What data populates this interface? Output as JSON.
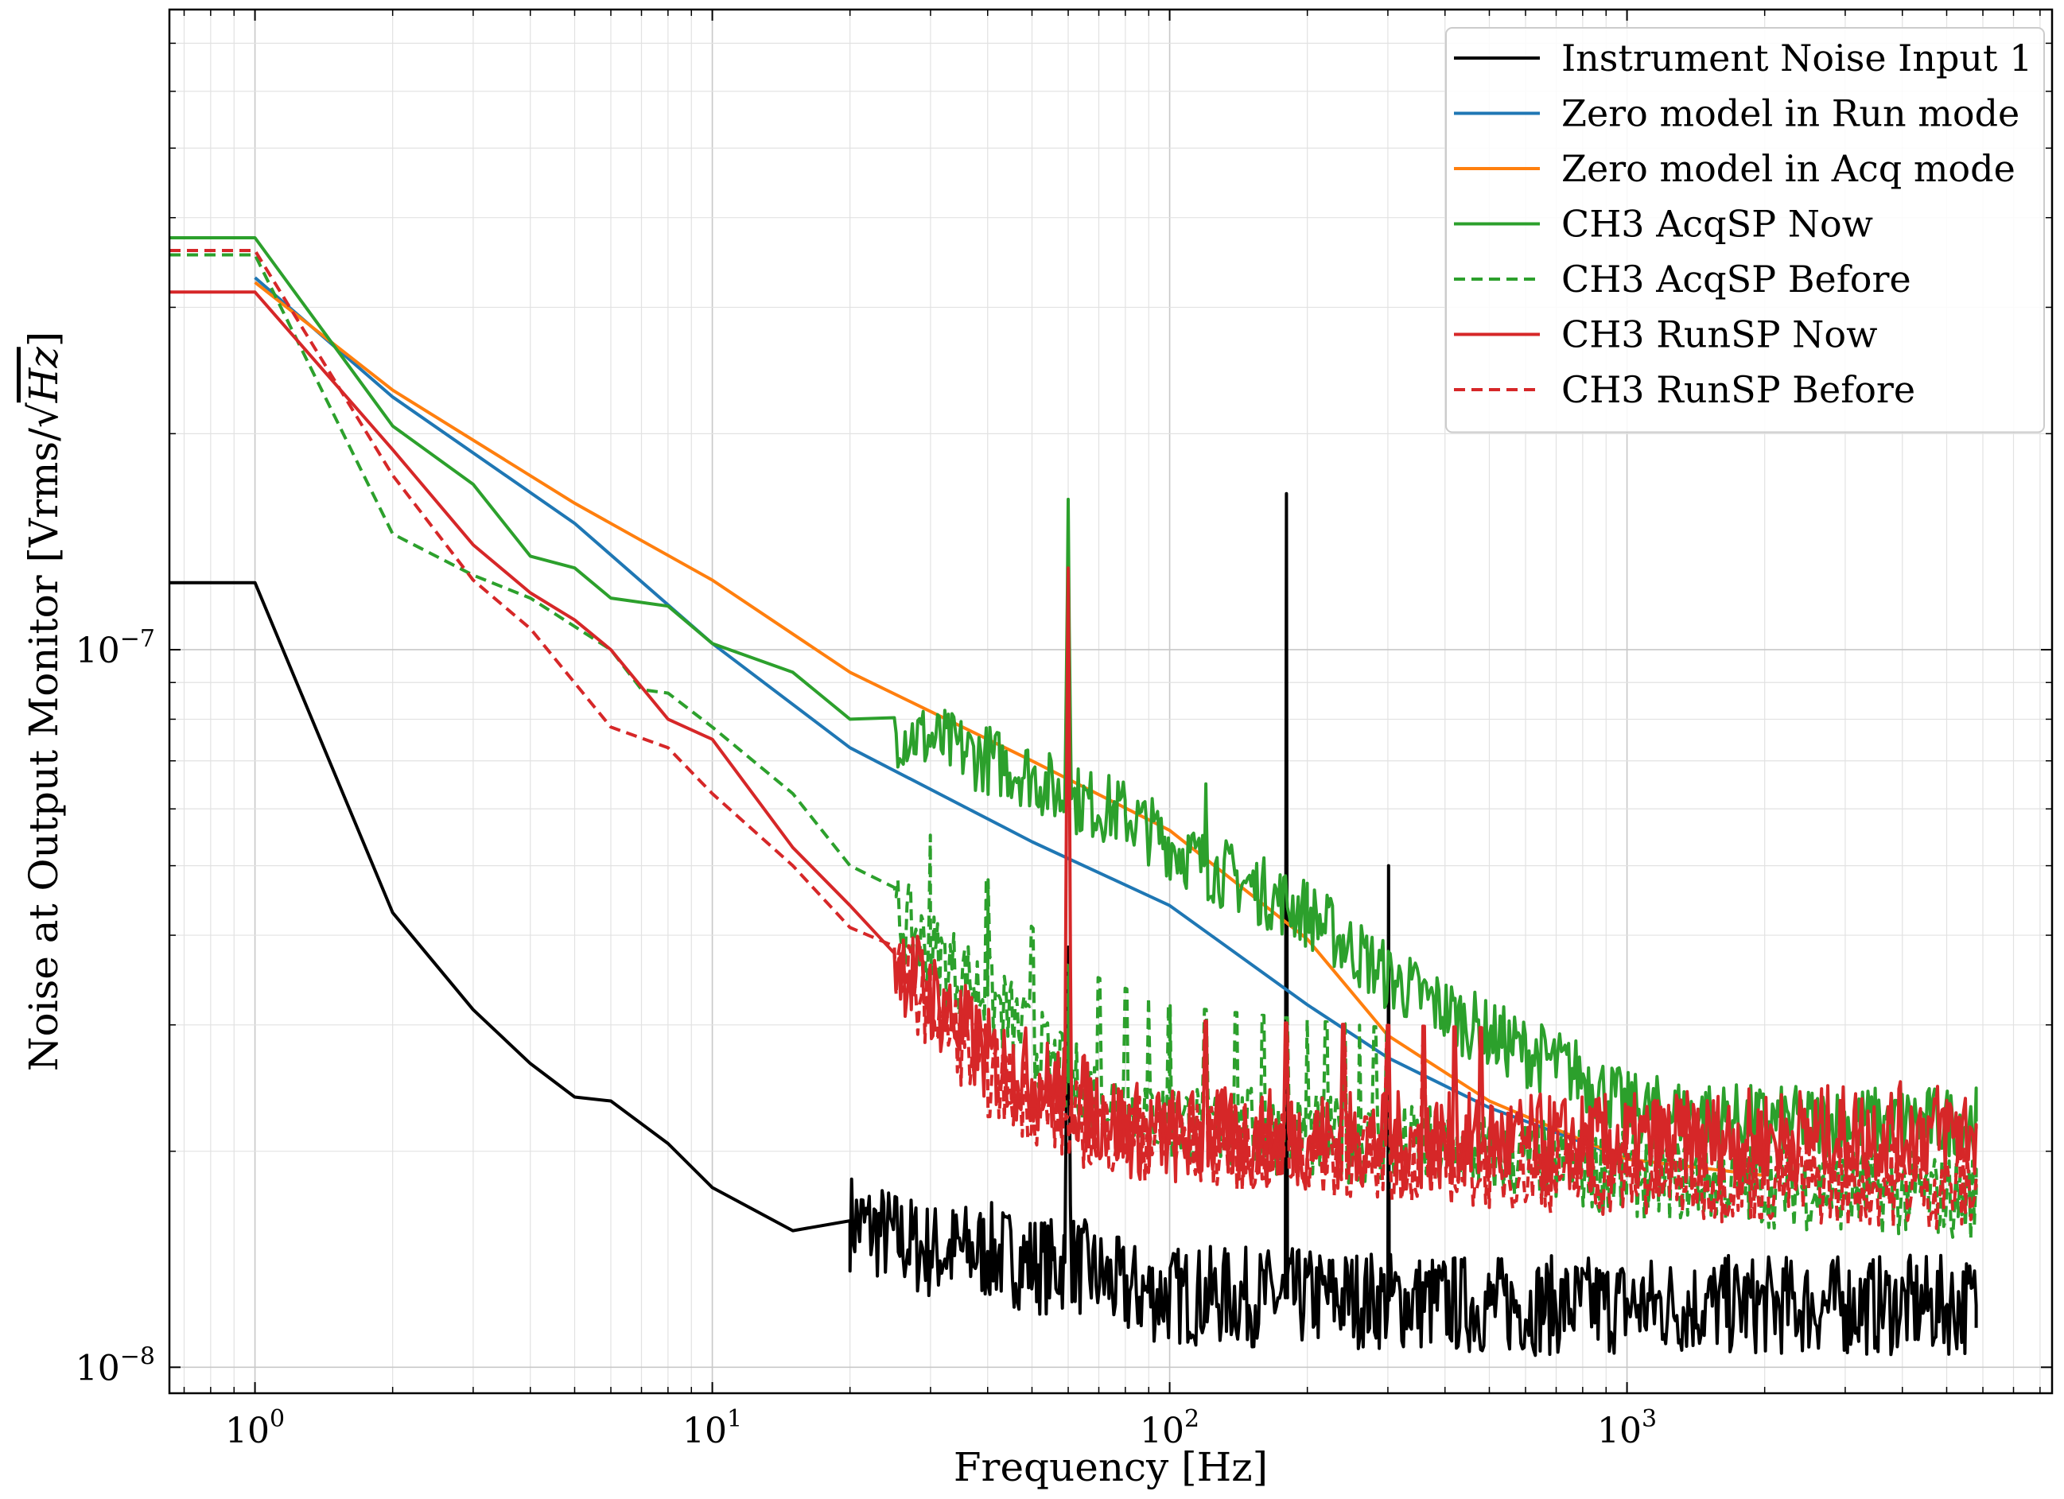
{
  "chart_data": {
    "type": "line",
    "title": "",
    "xlabel": "Frequency [Hz]",
    "ylabel": "Noise at Output Monitor [Vrms/√Hz]",
    "ylabel_radicand": "Hz",
    "x_scale": "log",
    "y_scale": "log",
    "xlim": [
      0.65,
      8500
    ],
    "ylim": [
      9.2e-09,
      7.8e-07
    ],
    "x_ticks": [
      {
        "value": 1,
        "base": "10",
        "exp": "0"
      },
      {
        "value": 10,
        "base": "10",
        "exp": "1"
      },
      {
        "value": 100,
        "base": "10",
        "exp": "2"
      },
      {
        "value": 1000,
        "base": "10",
        "exp": "3"
      }
    ],
    "y_ticks": [
      {
        "value": 1e-08,
        "base": "10",
        "exp": "−8"
      },
      {
        "value": 1e-07,
        "base": "10",
        "exp": "−7"
      }
    ],
    "grid": true,
    "legend_position": "top-right",
    "series": [
      {
        "name": "Instrument Noise Input 1",
        "color": "#000000",
        "style": "solid",
        "points": [
          [
            0.65,
            1.24e-07
          ],
          [
            1,
            1.24e-07
          ],
          [
            2,
            4.3e-08
          ],
          [
            3,
            3.15e-08
          ],
          [
            4,
            2.65e-08
          ],
          [
            5,
            2.38e-08
          ],
          [
            6,
            2.35e-08
          ],
          [
            8,
            2.05e-08
          ],
          [
            10,
            1.78e-08
          ],
          [
            15,
            1.55e-08
          ],
          [
            20,
            1.6e-08
          ],
          [
            30,
            1.45e-08
          ],
          [
            40,
            1.45e-08
          ],
          [
            55,
            1.38e-08
          ],
          [
            59,
            1.4e-08
          ],
          [
            60,
            3.85e-08
          ],
          [
            61,
            1.4e-08
          ],
          [
            80,
            1.28e-08
          ],
          [
            100,
            1.26e-08
          ],
          [
            179,
            1.25e-08
          ],
          [
            180,
            1.65e-07
          ],
          [
            181,
            1.25e-08
          ],
          [
            240,
            1.25e-08
          ],
          [
            300,
            1.24e-08
          ],
          [
            301,
            5e-08
          ],
          [
            302,
            1.24e-08
          ],
          [
            500,
            1.22e-08
          ],
          [
            1000,
            1.22e-08
          ],
          [
            3000,
            1.22e-08
          ],
          [
            5800,
            1.22e-08
          ]
        ],
        "noise": 0.07,
        "noise_start": 20,
        "noise_n": 700
      },
      {
        "name": "Zero model in Run mode",
        "color": "#1f77b4",
        "style": "solid",
        "points": [
          [
            1,
            3.3e-07
          ],
          [
            2,
            2.25e-07
          ],
          [
            5,
            1.5e-07
          ],
          [
            10,
            1.02e-07
          ],
          [
            20,
            7.3e-08
          ],
          [
            50,
            5.4e-08
          ],
          [
            100,
            4.4e-08
          ],
          [
            200,
            3.2e-08
          ],
          [
            300,
            2.7e-08
          ],
          [
            500,
            2.3e-08
          ],
          [
            1000,
            1.95e-08
          ],
          [
            2000,
            1.85e-08
          ]
        ]
      },
      {
        "name": "Zero model in Acq mode",
        "color": "#ff7f0e",
        "style": "solid",
        "points": [
          [
            1,
            3.25e-07
          ],
          [
            2,
            2.3e-07
          ],
          [
            5,
            1.6e-07
          ],
          [
            10,
            1.25e-07
          ],
          [
            20,
            9.3e-08
          ],
          [
            50,
            7e-08
          ],
          [
            100,
            5.6e-08
          ],
          [
            200,
            3.95e-08
          ],
          [
            300,
            2.9e-08
          ],
          [
            500,
            2.35e-08
          ],
          [
            1000,
            1.95e-08
          ],
          [
            2000,
            1.85e-08
          ]
        ]
      },
      {
        "name": "CH3 AcqSP Now",
        "color": "#2ca02c",
        "style": "solid",
        "points": [
          [
            0.65,
            3.75e-07
          ],
          [
            1,
            3.75e-07
          ],
          [
            2,
            2.05e-07
          ],
          [
            3,
            1.7e-07
          ],
          [
            4,
            1.35e-07
          ],
          [
            5,
            1.3e-07
          ],
          [
            6,
            1.18e-07
          ],
          [
            8,
            1.15e-07
          ],
          [
            10,
            1.02e-07
          ],
          [
            15,
            9.3e-08
          ],
          [
            20,
            8e-08
          ],
          [
            30,
            7.5e-08
          ],
          [
            50,
            6.7e-08
          ],
          [
            59,
            6.2e-08
          ],
          [
            60,
            1.62e-07
          ],
          [
            61,
            6.2e-08
          ],
          [
            80,
            5.9e-08
          ],
          [
            119,
            5e-08
          ],
          [
            120,
            6.5e-08
          ],
          [
            121,
            5e-08
          ],
          [
            200,
            4.3e-08
          ],
          [
            300,
            3.5e-08
          ],
          [
            500,
            2.9e-08
          ],
          [
            800,
            2.55e-08
          ],
          [
            1000,
            2.3e-08
          ],
          [
            2000,
            2.2e-08
          ],
          [
            5800,
            2.2e-08
          ]
        ],
        "noise": 0.05,
        "noise_start": 25,
        "noise_n": 600
      },
      {
        "name": "CH3 AcqSP Before",
        "color": "#2ca02c",
        "style": "dashed",
        "points": [
          [
            0.65,
            3.55e-07
          ],
          [
            1,
            3.55e-07
          ],
          [
            2,
            1.45e-07
          ],
          [
            3,
            1.27e-07
          ],
          [
            4,
            1.18e-07
          ],
          [
            6,
            1e-07
          ],
          [
            7,
            8.8e-08
          ],
          [
            8,
            8.7e-08
          ],
          [
            10,
            7.8e-08
          ],
          [
            15,
            6.3e-08
          ],
          [
            20,
            5e-08
          ],
          [
            30,
            3.8e-08
          ],
          [
            40,
            3.3e-08
          ],
          [
            60,
            2.5e-08
          ],
          [
            100,
            2.2e-08
          ],
          [
            500,
            1.98e-08
          ],
          [
            1000,
            1.85e-08
          ],
          [
            5800,
            1.72e-08
          ]
        ],
        "noise": 0.06,
        "noise_start": 25,
        "noise_n": 600,
        "spikes": [
          30,
          40,
          50,
          60,
          70,
          80,
          90,
          100,
          120,
          140,
          160,
          180,
          200,
          220,
          240,
          260,
          280,
          300
        ]
      },
      {
        "name": "CH3 RunSP Now",
        "color": "#d62728",
        "style": "solid",
        "points": [
          [
            0.65,
            3.15e-07
          ],
          [
            1,
            3.15e-07
          ],
          [
            2,
            1.9e-07
          ],
          [
            3,
            1.4e-07
          ],
          [
            4,
            1.2e-07
          ],
          [
            5,
            1.1e-07
          ],
          [
            6,
            1e-07
          ],
          [
            8,
            8e-08
          ],
          [
            10,
            7.5e-08
          ],
          [
            15,
            5.3e-08
          ],
          [
            20,
            4.4e-08
          ],
          [
            30,
            3.3e-08
          ],
          [
            40,
            2.7e-08
          ],
          [
            59,
            2.4e-08
          ],
          [
            60,
            1.3e-07
          ],
          [
            61,
            2.4e-08
          ],
          [
            80,
            2.15e-08
          ],
          [
            100,
            2.1e-08
          ],
          [
            500,
            2.05e-08
          ],
          [
            1000,
            2.05e-08
          ],
          [
            5800,
            2.15e-08
          ]
        ],
        "noise": 0.07,
        "noise_start": 25,
        "noise_n": 700,
        "spikes": [
          120,
          180,
          240,
          300,
          360,
          420,
          480
        ]
      },
      {
        "name": "CH3 RunSP Before",
        "color": "#d62728",
        "style": "dashed",
        "points": [
          [
            0.65,
            3.6e-07
          ],
          [
            1,
            3.6e-07
          ],
          [
            2,
            1.75e-07
          ],
          [
            3,
            1.25e-07
          ],
          [
            4,
            1.07e-07
          ],
          [
            6,
            7.8e-08
          ],
          [
            8,
            7.3e-08
          ],
          [
            10,
            6.3e-08
          ],
          [
            15,
            5e-08
          ],
          [
            20,
            4.1e-08
          ],
          [
            30,
            3.2e-08
          ],
          [
            40,
            2.55e-08
          ],
          [
            60,
            2.2e-08
          ],
          [
            100,
            2.05e-08
          ],
          [
            1000,
            1.85e-08
          ],
          [
            5800,
            1.78e-08
          ]
        ],
        "noise": 0.06,
        "noise_start": 25,
        "noise_n": 600,
        "spikes": [
          120,
          180,
          240,
          300,
          360
        ]
      }
    ]
  }
}
